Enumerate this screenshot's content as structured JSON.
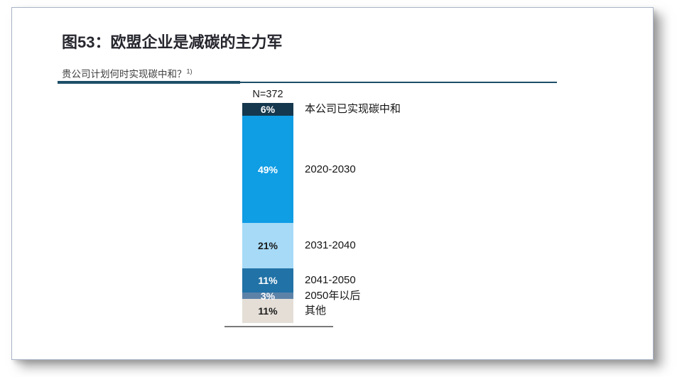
{
  "page": {
    "title": "图53：欧盟企业是减碳的主力军",
    "subtitle": "贵公司计划何时实现碳中和？",
    "footnote_marker": "1)",
    "sample_label": "N=372"
  },
  "chart_data": {
    "type": "bar",
    "stacked": true,
    "orientation": "vertical",
    "title": "图53：欧盟企业是减碳的主力军",
    "question": "贵公司计划何时实现碳中和？",
    "n": 372,
    "unit": "%",
    "categories": [
      "本公司已实现碳中和",
      "2020-2030",
      "2031-2040",
      "2041-2050",
      "2050年以后",
      "其他"
    ],
    "values": [
      6,
      49,
      21,
      11,
      3,
      11
    ],
    "colors": [
      "#15384e",
      "#0f9de4",
      "#a6daf7",
      "#2172a6",
      "#5d82a8",
      "#e4ded7"
    ],
    "value_label_colors": [
      "#ffffff",
      "#ffffff",
      "#1a1a1a",
      "#ffffff",
      "#ffffff",
      "#1a1a1a"
    ],
    "rule_color": "#1d4f68",
    "baseline_color": "#7a7a7a",
    "legend_position": "right-of-bar"
  }
}
